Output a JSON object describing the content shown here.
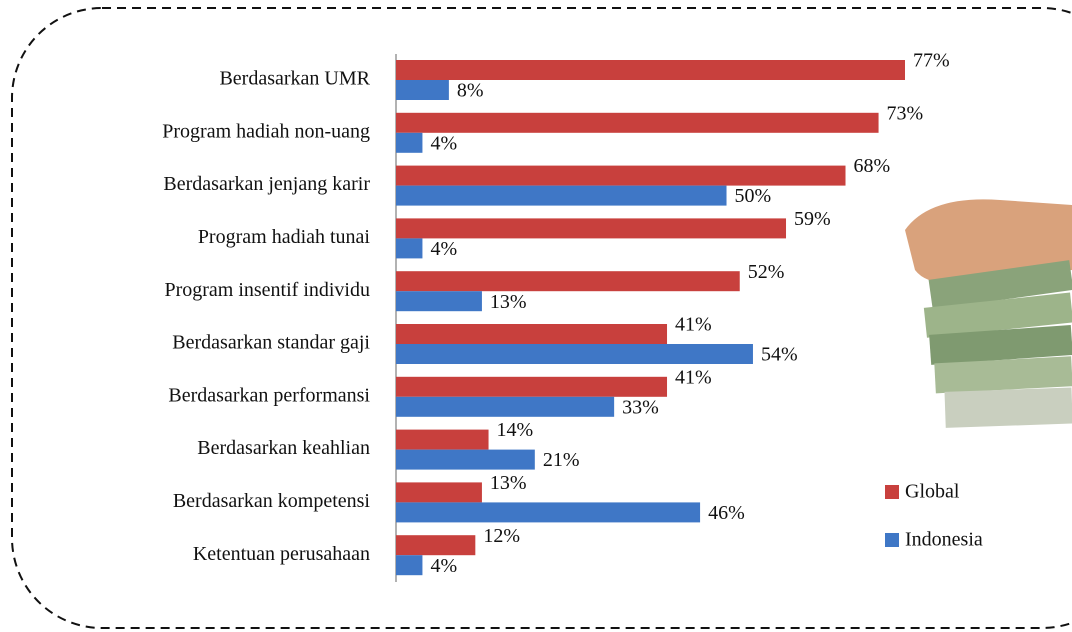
{
  "chart_data": {
    "type": "bar",
    "orientation": "horizontal",
    "categories": [
      "Berdasarkan UMR",
      "Program hadiah non-uang",
      "Berdasarkan jenjang karir",
      "Program hadiah tunai",
      "Program insentif individu",
      "Berdasarkan standar gaji",
      "Berdasarkan performansi",
      "Berdasarkan keahlian",
      "Berdasarkan kompetensi",
      "Ketentuan perusahaan"
    ],
    "series": [
      {
        "name": "Global",
        "color": "#c8403d",
        "values": [
          77,
          73,
          68,
          59,
          52,
          41,
          41,
          14,
          13,
          12
        ],
        "value_labels": [
          "77%",
          "73%",
          "68%",
          "59%",
          "52%",
          "41%",
          "41%",
          "14%",
          "13%",
          "12%"
        ]
      },
      {
        "name": "Indonesia",
        "color": "#3f77c6",
        "values": [
          8,
          4,
          50,
          4,
          13,
          54,
          33,
          21,
          46,
          4
        ],
        "value_labels": [
          "8%",
          "4%",
          "50%",
          "4%",
          "13%",
          "54%",
          "33%",
          "21%",
          "46%",
          "4%"
        ]
      }
    ],
    "legend": "right"
  }
}
